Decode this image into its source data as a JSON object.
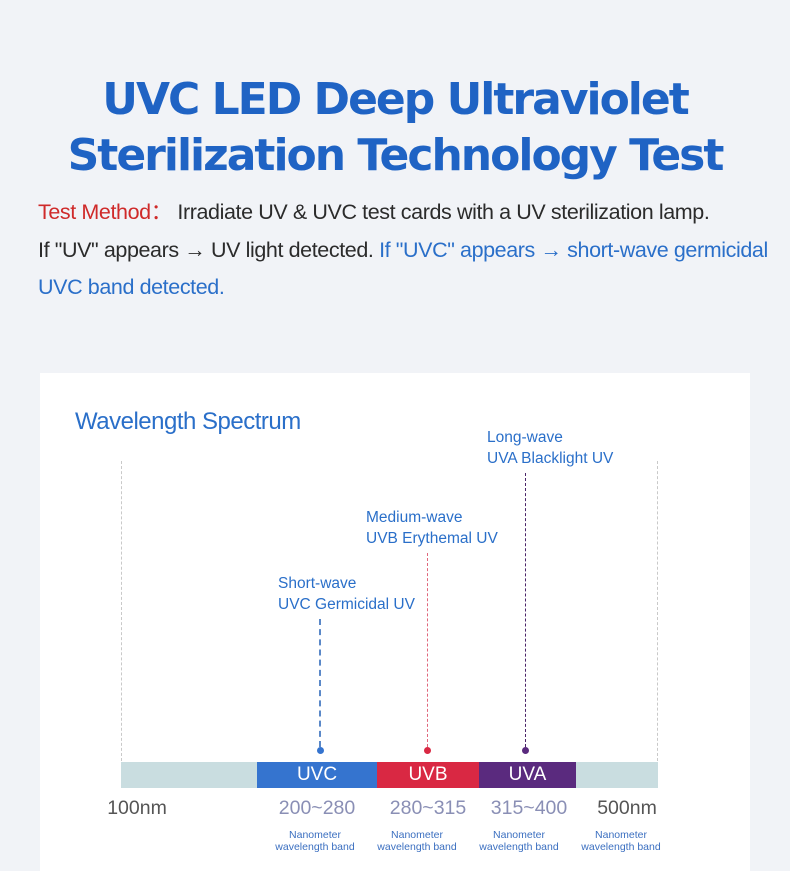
{
  "title": {
    "line1": "UVC LED Deep Ultraviolet",
    "line2": "Sterilization Technology Test"
  },
  "description": {
    "method_label": "Test Method：",
    "method_text": " Irradiate UV & UVC test cards with a UV sterilization lamp.",
    "uv_text": "If \"UV\" appears → UV light detected. ",
    "uvc_text": "If \"UVC\" appears → short-wave germicidal UVC band detected."
  },
  "panel": {
    "title": "Wavelength Spectrum",
    "labels": {
      "uvc": {
        "line1": "Short-wave",
        "line2": "UVC Germicidal UV"
      },
      "uvb": {
        "line1": "Medium-wave",
        "line2": "UVB Erythemal UV"
      },
      "uva": {
        "line1": "Long-wave",
        "line2": "UVA Blacklight UV"
      }
    },
    "bands": {
      "uvc": "UVC",
      "uvb": "UVB",
      "uva": "UVA"
    },
    "ranges": {
      "start": "100nm",
      "uvc": "200~280",
      "uvb": "280~315",
      "uva": "315~400",
      "end": "500nm"
    },
    "band_note": {
      "line1": "Nanometer",
      "line2": "wavelength band"
    }
  },
  "colors": {
    "title": "#1f63c4",
    "accent_red": "#cf2a2a",
    "accent_blue": "#2a6fc9",
    "uvc": "#3574cf",
    "uvb": "#d92843",
    "uva": "#5a2a7e",
    "base_bar": "#c9dde0"
  }
}
